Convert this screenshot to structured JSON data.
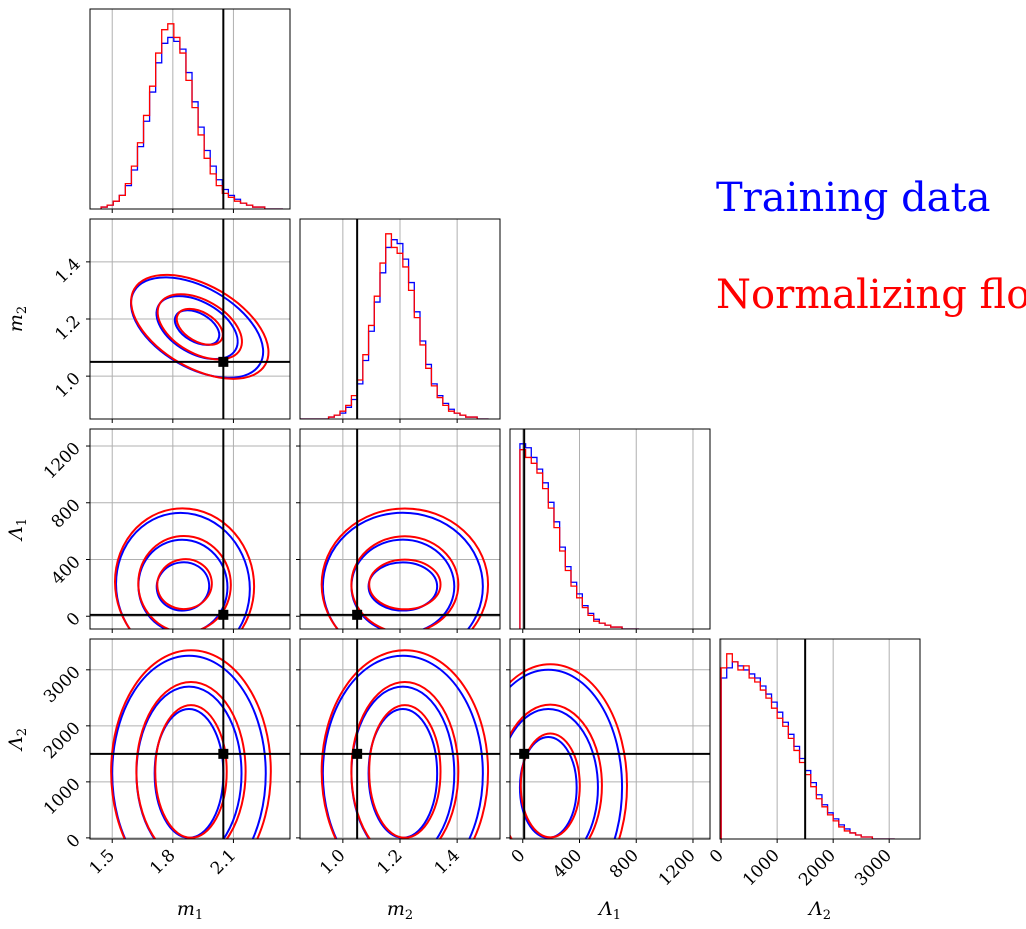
{
  "chart_data": {
    "type": "corner",
    "parameters": [
      "m1",
      "m2",
      "Λ1",
      "Λ2"
    ],
    "axis_labels": {
      "m1": {
        "main": "m",
        "sub": "1"
      },
      "m2": {
        "main": "m",
        "sub": "2"
      },
      "Λ1": {
        "main": "Λ",
        "sub": "1"
      },
      "Λ2": {
        "main": "Λ",
        "sub": "2"
      }
    },
    "ranges": {
      "m1": [
        1.39,
        2.38
      ],
      "m2": [
        0.85,
        1.55
      ],
      "Λ1": [
        -90,
        1320
      ],
      "Λ2": [
        -20,
        3550
      ]
    },
    "ticks": {
      "m1": [
        "1.5",
        "1.8",
        "2.1"
      ],
      "m2": [
        "1.0",
        "1.2",
        "1.4"
      ],
      "Λ1": [
        "0",
        "400",
        "800",
        "1200"
      ],
      "Λ2": [
        "0",
        "1000",
        "2000",
        "3000"
      ]
    },
    "tick_values": {
      "m1": [
        1.5,
        1.8,
        2.1
      ],
      "m2": [
        1.0,
        1.2,
        1.4
      ],
      "Λ1": [
        0,
        400,
        800,
        1200
      ],
      "Λ2": [
        0,
        1000,
        2000,
        3000
      ]
    },
    "truths": {
      "m1": 2.05,
      "m2": 1.05,
      "Λ1": 10,
      "Λ2": 1500
    },
    "series": [
      {
        "name": "Training data",
        "color": "#0000ff"
      },
      {
        "name": "Normalizing flow",
        "color": "#ff0000"
      }
    ],
    "marginals": {
      "m1": {
        "centers": [
          1.46,
          1.49,
          1.52,
          1.55,
          1.58,
          1.61,
          1.64,
          1.67,
          1.7,
          1.73,
          1.76,
          1.79,
          1.82,
          1.85,
          1.88,
          1.91,
          1.94,
          1.97,
          2.0,
          2.03,
          2.06,
          2.09,
          2.12,
          2.15,
          2.18,
          2.21,
          2.24,
          2.27,
          2.3,
          2.33
        ],
        "training": [
          1,
          2,
          4,
          7,
          12,
          20,
          32,
          45,
          60,
          75,
          85,
          88,
          86,
          82,
          70,
          55,
          42,
          30,
          22,
          15,
          10,
          7,
          5,
          3,
          2,
          1,
          1,
          0,
          0,
          0
        ],
        "flow": [
          1,
          2,
          4,
          7,
          13,
          22,
          34,
          48,
          63,
          80,
          92,
          95,
          88,
          80,
          66,
          52,
          38,
          26,
          18,
          12,
          8,
          6,
          4,
          3,
          2,
          1,
          1,
          0,
          0,
          0
        ]
      },
      "m2": {
        "centers": [
          0.86,
          0.88,
          0.9,
          0.92,
          0.94,
          0.96,
          0.98,
          1.0,
          1.02,
          1.04,
          1.06,
          1.08,
          1.1,
          1.12,
          1.14,
          1.16,
          1.18,
          1.2,
          1.22,
          1.24,
          1.26,
          1.28,
          1.3,
          1.32,
          1.34,
          1.36,
          1.38,
          1.4,
          1.42,
          1.44,
          1.46,
          1.48,
          1.5
        ],
        "training": [
          0,
          0,
          0,
          0,
          0,
          1,
          2,
          3,
          6,
          10,
          18,
          30,
          45,
          60,
          75,
          88,
          92,
          90,
          82,
          70,
          55,
          40,
          28,
          18,
          12,
          8,
          5,
          3,
          2,
          1,
          1,
          0,
          0
        ],
        "flow": [
          0,
          0,
          0,
          0,
          0,
          1,
          2,
          4,
          7,
          12,
          20,
          33,
          48,
          63,
          80,
          95,
          88,
          85,
          78,
          66,
          52,
          38,
          26,
          17,
          11,
          7,
          4,
          3,
          2,
          1,
          1,
          0,
          0
        ]
      },
      "Λ1": {
        "centers": [
          0,
          40,
          80,
          120,
          160,
          200,
          240,
          280,
          320,
          360,
          400,
          440,
          480,
          520,
          560,
          600,
          640,
          680,
          720,
          760,
          800
        ],
        "training": [
          95,
          93,
          88,
          82,
          75,
          65,
          55,
          42,
          32,
          24,
          18,
          12,
          8,
          5,
          3,
          2,
          1,
          1,
          0,
          0,
          0
        ],
        "flow": [
          92,
          88,
          85,
          80,
          72,
          62,
          52,
          40,
          30,
          22,
          16,
          11,
          7,
          4,
          3,
          2,
          1,
          1,
          0,
          0,
          0
        ]
      },
      "Λ2": {
        "centers": [
          50,
          150,
          250,
          350,
          450,
          550,
          650,
          750,
          850,
          950,
          1050,
          1150,
          1250,
          1350,
          1450,
          1550,
          1650,
          1750,
          1850,
          1950,
          2050,
          2150,
          2250,
          2350,
          2450,
          2550,
          2650,
          2750,
          2850,
          2950,
          3050
        ],
        "training": [
          80,
          85,
          88,
          86,
          84,
          82,
          80,
          76,
          72,
          68,
          63,
          58,
          52,
          46,
          40,
          34,
          28,
          22,
          17,
          13,
          10,
          7,
          5,
          3,
          2,
          1,
          1,
          0,
          0,
          0,
          0
        ],
        "flow": [
          85,
          92,
          88,
          84,
          86,
          80,
          78,
          74,
          70,
          65,
          60,
          56,
          50,
          44,
          38,
          32,
          26,
          20,
          16,
          12,
          9,
          6,
          4,
          3,
          2,
          1,
          1,
          0,
          0,
          0,
          0
        ]
      }
    },
    "contours": {
      "m1|m2": {
        "center": [
          1.92,
          1.17
        ],
        "angle_deg": 30,
        "rx": [
          0.12,
          0.22,
          0.36
        ],
        "ry": [
          0.05,
          0.09,
          0.14
        ]
      },
      "m1|Λ1": {
        "center": [
          1.85,
          210
        ],
        "angle_deg": -10,
        "rx": [
          0.13,
          0.22,
          0.33
        ],
        "ry": [
          170,
          330,
          520
        ]
      },
      "m2|Λ1": {
        "center": [
          1.21,
          210
        ],
        "angle_deg": 0,
        "rx": [
          0.12,
          0.18,
          0.28
        ],
        "ry": [
          170,
          330,
          520
        ]
      },
      "m1|Λ2": {
        "center": [
          1.88,
          1150
        ],
        "angle_deg": 0,
        "rx": [
          0.17,
          0.26,
          0.38
        ],
        "ry": [
          1150,
          1550,
          2100
        ]
      },
      "m2|Λ2": {
        "center": [
          1.21,
          1150
        ],
        "angle_deg": 0,
        "rx": [
          0.12,
          0.18,
          0.28
        ],
        "ry": [
          1150,
          1550,
          2100
        ]
      },
      "Λ1|Λ2": {
        "center": [
          180,
          900
        ],
        "angle_deg": 0,
        "rx": [
          200,
          350,
          520
        ],
        "ry": [
          900,
          1400,
          2100
        ]
      }
    },
    "legend": {
      "placement": "upper right of grid"
    }
  }
}
